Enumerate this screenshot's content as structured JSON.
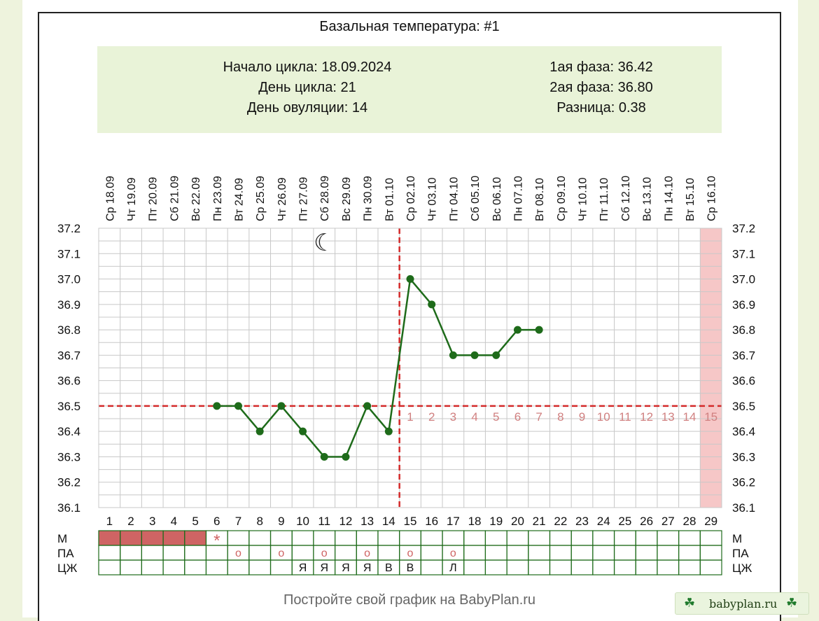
{
  "title": "Базальная температура: #1",
  "info": {
    "cycle_start": "Начало цикла: 18.09.2024",
    "cycle_day": "День цикла: 21",
    "ovulation_day": "День овуляции: 14",
    "phase1": "1ая фаза: 36.42",
    "phase2": "2ая фаза: 36.80",
    "difference": "Разница: 0.38"
  },
  "footer": "Постройте свой график на BabyPlan.ru",
  "badge": {
    "text": "babyplan.ru",
    "icon": "clover-icon"
  },
  "colors": {
    "line": "#1e6b1a",
    "point": "#1e6b1a",
    "coverline": "#d42a2a",
    "post_ov_numbers": "#d08080",
    "menses": "#cf6464",
    "expected_period": "#f6c7c7"
  },
  "chart_data": {
    "type": "line",
    "title": "Базальная температура: #1",
    "days": [
      "1",
      "2",
      "3",
      "4",
      "5",
      "6",
      "7",
      "8",
      "9",
      "10",
      "11",
      "12",
      "13",
      "14",
      "15",
      "16",
      "17",
      "18",
      "19",
      "20",
      "21",
      "22",
      "23",
      "24",
      "25",
      "26",
      "27",
      "28",
      "29"
    ],
    "dates": [
      "18.09",
      "19.09",
      "20.09",
      "21.09",
      "22.09",
      "23.09",
      "24.09",
      "25.09",
      "26.09",
      "27.09",
      "28.09",
      "29.09",
      "30.09",
      "01.10",
      "02.10",
      "03.10",
      "04.10",
      "05.10",
      "06.10",
      "07.10",
      "08.10",
      "09.10",
      "10.10",
      "11.10",
      "12.10",
      "13.10",
      "14.10",
      "15.10",
      "16.10"
    ],
    "weekdays": [
      "Ср",
      "Чт",
      "Пт",
      "Сб",
      "Вс",
      "Пн",
      "Вт",
      "Ср",
      "Чт",
      "Пт",
      "Сб",
      "Вс",
      "Пн",
      "Вт",
      "Ср",
      "Чт",
      "Пт",
      "Сб",
      "Вс",
      "Пн",
      "Вт",
      "Ср",
      "Чт",
      "Пт",
      "Сб",
      "Вс",
      "Пн",
      "Вт",
      "Ср"
    ],
    "yticks": [
      "37.2",
      "37.1",
      "37.0",
      "36.9",
      "36.8",
      "36.7",
      "36.6",
      "36.5",
      "36.4",
      "36.3",
      "36.2",
      "36.1"
    ],
    "ylim": [
      36.1,
      37.2
    ],
    "series": [
      {
        "values": [
          null,
          null,
          null,
          null,
          null,
          36.5,
          36.5,
          36.4,
          36.5,
          36.4,
          36.3,
          36.3,
          36.5,
          36.4,
          37.0,
          36.9,
          36.7,
          36.7,
          36.7,
          36.8,
          36.8,
          null,
          null,
          null,
          null,
          null,
          null,
          null,
          null
        ]
      }
    ],
    "coverline": 36.5,
    "ovulation_day": 14,
    "post_ov_labels": [
      "1",
      "2",
      "3",
      "4",
      "5",
      "6",
      "7",
      "8",
      "9",
      "10",
      "11",
      "12",
      "13",
      "14",
      "15"
    ],
    "expected_period_day": 29,
    "moon_day": 11,
    "moon_glyph": "☾",
    "rows": [
      {
        "label": "М",
        "menses_days": [
          1,
          2,
          3,
          4,
          5
        ],
        "marks": [
          {
            "day": 6,
            "text": "*"
          }
        ]
      },
      {
        "label": "ПА",
        "marks": [
          {
            "day": 7,
            "text": "o"
          },
          {
            "day": 9,
            "text": "o"
          },
          {
            "day": 11,
            "text": "o"
          },
          {
            "day": 13,
            "text": "o"
          },
          {
            "day": 15,
            "text": "o"
          },
          {
            "day": 17,
            "text": "o"
          }
        ]
      },
      {
        "label": "ЦЖ",
        "marks": [
          {
            "day": 10,
            "text": "Я"
          },
          {
            "day": 11,
            "text": "Я"
          },
          {
            "day": 12,
            "text": "Я"
          },
          {
            "day": 13,
            "text": "Я"
          },
          {
            "day": 14,
            "text": "В"
          },
          {
            "day": 15,
            "text": "В"
          },
          {
            "day": 17,
            "text": "Л"
          }
        ]
      }
    ]
  }
}
